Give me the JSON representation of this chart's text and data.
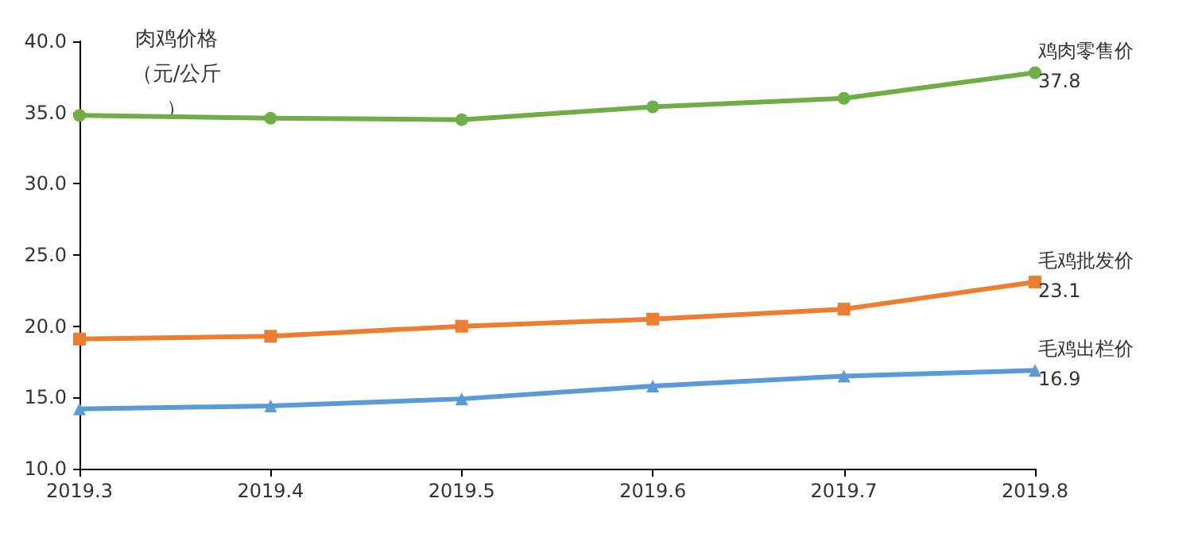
{
  "chart_data": {
    "type": "line",
    "ylabel": "肉鸡价格（元/公斤）",
    "categories": [
      "2019.3",
      "2019.4",
      "2019.5",
      "2019.6",
      "2019.7",
      "2019.8"
    ],
    "series": [
      {
        "name": "鸡肉零售价",
        "color": "#70ad47",
        "marker": "circle",
        "values": [
          34.8,
          34.6,
          34.5,
          35.4,
          36.0,
          37.8
        ],
        "value_labels": [
          null,
          null,
          null,
          null,
          null,
          "37.8"
        ]
      },
      {
        "name": "毛鸡批发价",
        "color": "#ed7d31",
        "marker": "square",
        "values": [
          19.1,
          19.3,
          20.0,
          20.5,
          21.2,
          23.1
        ],
        "value_labels": [
          null,
          null,
          null,
          null,
          null,
          "23.1"
        ]
      },
      {
        "name": "毛鸡出栏价",
        "color": "#5b9bd5",
        "marker": "triangle",
        "values": [
          14.2,
          14.4,
          14.9,
          15.8,
          16.5,
          16.9
        ],
        "value_labels": [
          null,
          null,
          null,
          null,
          null,
          "16.9"
        ]
      }
    ],
    "ylim": [
      10,
      40
    ],
    "yticks": [
      {
        "value": 10,
        "label": "10.0"
      },
      {
        "value": 15,
        "label": "15.0"
      },
      {
        "value": 20,
        "label": "20.0"
      },
      {
        "value": 25,
        "label": "25.0"
      },
      {
        "value": 30,
        "label": "30.0"
      },
      {
        "value": 35,
        "label": "35.0"
      },
      {
        "value": 40,
        "label": "40.0"
      }
    ],
    "grid": false,
    "legend": false
  }
}
